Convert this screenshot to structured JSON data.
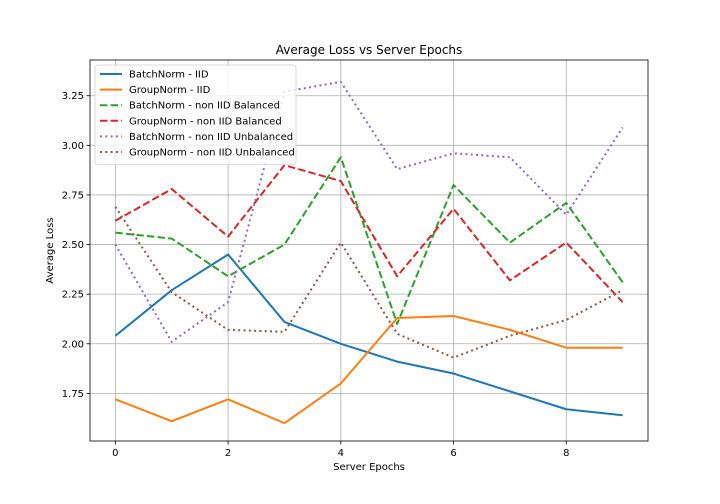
{
  "chart_data": {
    "type": "line",
    "title": "Average Loss vs Server Epochs",
    "xlabel": "Server Epochs",
    "ylabel": "Average Loss",
    "x": [
      0,
      1,
      2,
      3,
      4,
      5,
      6,
      7,
      8,
      9
    ],
    "xlim": [
      -0.45,
      9.45
    ],
    "ylim": [
      1.51,
      3.43
    ],
    "xticks": [
      0,
      2,
      4,
      6,
      8
    ],
    "yticks": [
      1.75,
      2.0,
      2.25,
      2.5,
      2.75,
      3.0,
      3.25
    ],
    "xtick_labels": [
      "0",
      "2",
      "4",
      "6",
      "8"
    ],
    "ytick_labels": [
      "1.75",
      "2.00",
      "2.25",
      "2.50",
      "2.75",
      "3.00",
      "3.25"
    ],
    "grid": true,
    "legend_position": "top-left",
    "series": [
      {
        "name": "BatchNorm - IID",
        "color": "#1f77b4",
        "style": "solid",
        "values": [
          2.04,
          2.27,
          2.45,
          2.11,
          2.0,
          1.91,
          1.85,
          1.76,
          1.67,
          1.64
        ]
      },
      {
        "name": "GroupNorm - IID",
        "color": "#ff7f0e",
        "style": "solid",
        "values": [
          1.72,
          1.61,
          1.72,
          1.6,
          1.8,
          2.13,
          2.14,
          2.07,
          1.98,
          1.98
        ]
      },
      {
        "name": "BatchNorm - non IID Balanced",
        "color": "#2ca02c",
        "style": "dashed",
        "values": [
          2.56,
          2.53,
          2.34,
          2.5,
          2.94,
          2.1,
          2.8,
          2.51,
          2.71,
          2.31
        ]
      },
      {
        "name": "GroupNorm - non IID Balanced",
        "color": "#d62728",
        "style": "dashed",
        "values": [
          2.62,
          2.78,
          2.54,
          2.9,
          2.82,
          2.34,
          2.68,
          2.32,
          2.51,
          2.21
        ]
      },
      {
        "name": "BatchNorm - non IID Unbalanced",
        "color": "#9467bd",
        "style": "dotted",
        "values": [
          2.5,
          2.01,
          2.21,
          3.27,
          3.32,
          2.88,
          2.96,
          2.94,
          2.65,
          3.09
        ]
      },
      {
        "name": "GroupNorm - non IID Unbalanced",
        "color": "#8c564b",
        "style": "dotted",
        "values": [
          2.69,
          2.26,
          2.07,
          2.06,
          2.51,
          2.05,
          1.93,
          2.04,
          2.12,
          2.27
        ]
      }
    ]
  }
}
